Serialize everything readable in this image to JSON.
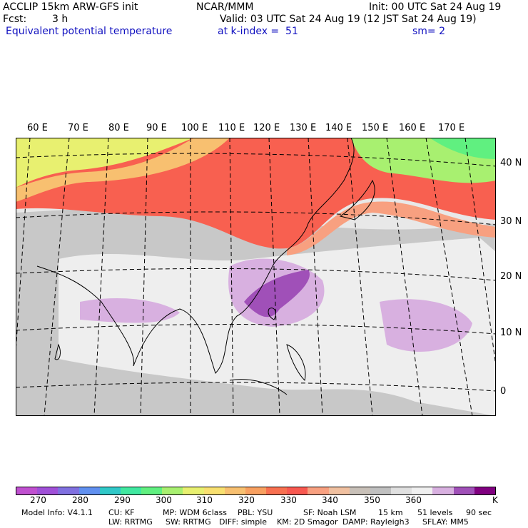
{
  "header": {
    "model": "ACCLIP 15km ARW-GFS init",
    "org": "NCAR/MMM",
    "init": "Init: 00 UTC Sat 24 Aug 19",
    "fcst_label": "Fcst:",
    "fcst_value": "3 h",
    "valid": "Valid: 03 UTC Sat 24 Aug 19 (12 JST Sat 24 Aug 19)",
    "field": "Equivalent potential temperature",
    "level": "at k-index =  51",
    "smooth": "sm= 2"
  },
  "map": {
    "lon_labels": [
      "60 E",
      "70 E",
      "80 E",
      "90 E",
      "100 E",
      "110 E",
      "120 E",
      "130 E",
      "140 E",
      "150 E",
      "160 E",
      "170 E"
    ],
    "lat_labels": [
      "40 N",
      "30 N",
      "20 N",
      "10 N",
      "0"
    ]
  },
  "colorbar": {
    "colors": [
      "#c050d0",
      "#a050d8",
      "#8070e0",
      "#6090f0",
      "#30c8c8",
      "#40e8a0",
      "#60f080",
      "#a8f070",
      "#e8f070",
      "#f8e070",
      "#f8c070",
      "#f8a060",
      "#f87050",
      "#f85850",
      "#f8a080",
      "#f0c0a0",
      "#c8c0b8",
      "#c0c0c0",
      "#e0e0e0",
      "#f0f0f0",
      "#d8b0e0",
      "#a050b8",
      "#800080"
    ],
    "labels": [
      "270",
      "280",
      "290",
      "300",
      "310",
      "320",
      "330",
      "340",
      "350",
      "360"
    ],
    "unit": "K"
  },
  "footer": {
    "line1": [
      "Model Info: V4.1.1",
      "CU: KF",
      "MP: WDM 6class",
      "PBL: YSU",
      "SF: Noah LSM",
      "15 km",
      "51 levels",
      "90 sec"
    ],
    "line2": [
      "LW: RRTMG",
      "SW: RRTMG",
      "DIFF: simple",
      "KM: 2D Smagor",
      "DAMP: Rayleigh3",
      "SFLAY: MM5"
    ]
  }
}
